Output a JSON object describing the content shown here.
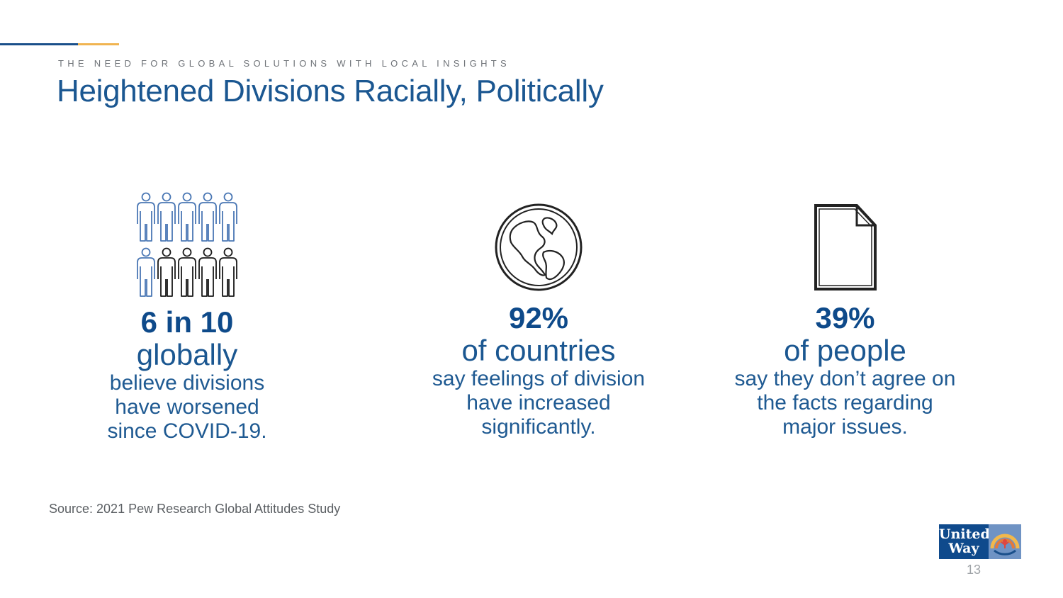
{
  "header": {
    "eyebrow": "THE NEED FOR GLOBAL SOLUTIONS WITH LOCAL INSIGHTS",
    "title": "Heightened Divisions Racially, Politically"
  },
  "stats": [
    {
      "icon": "people-grid-icon",
      "headline": "6 in 10",
      "subhead": "globally",
      "lines": [
        "believe divisions",
        "have worsened",
        "since COVID-19."
      ]
    },
    {
      "icon": "globe-icon",
      "headline": "92%",
      "subhead": "of countries",
      "lines": [
        "say feelings of division",
        "have increased",
        "significantly."
      ]
    },
    {
      "icon": "document-icon",
      "headline": "39%",
      "subhead": "of people",
      "lines": [
        "say they don’t agree on",
        "the facts regarding",
        "major issues."
      ]
    }
  ],
  "footer": {
    "source": "Source: 2021 Pew Research Global Attitudes Study",
    "logo_line1": "United",
    "logo_line2": "Way",
    "page_number": "13"
  },
  "colors": {
    "brand_blue": "#1b5791",
    "accent_gold": "#f0b451",
    "people_blue": "#4a77b4",
    "people_dark": "#1a1a1a"
  }
}
